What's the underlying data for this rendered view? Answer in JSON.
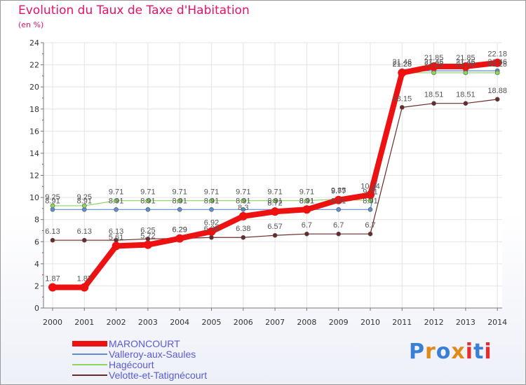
{
  "chart_data": {
    "type": "line",
    "title": "Evolution du Taux de Taxe d'Habitation",
    "ylabel": "(en %)",
    "xlabel": "",
    "ylim": [
      0,
      24
    ],
    "yticks": [
      0,
      2,
      4,
      6,
      8,
      10,
      12,
      14,
      16,
      18,
      20,
      22,
      24
    ],
    "x": [
      "2000",
      "2001",
      "2002",
      "2003",
      "2004",
      "2005",
      "2006",
      "2007",
      "2008",
      "2009",
      "2010",
      "2011",
      "2012",
      "2013",
      "2014"
    ],
    "series": [
      {
        "name": "MARONCOURT",
        "color": "#ee1111",
        "values": [
          1.87,
          1.87,
          5.61,
          5.72,
          6.29,
          6.92,
          8.3,
          8.72,
          8.91,
          9.77,
          10.24,
          21.28,
          21.85,
          21.85,
          22.18
        ],
        "labels": [
          "1.87",
          "1.87",
          "5.61",
          "5.72",
          "6.29",
          "6.92",
          "8.3",
          "8.72",
          "8.91",
          "9.77",
          "10.24",
          "21.28",
          "21.85",
          "21.85",
          "22.18"
        ]
      },
      {
        "name": "Valleroy-aux-Saules",
        "color": "#5b8fd0",
        "values": [
          8.91,
          8.91,
          8.91,
          8.91,
          8.91,
          8.91,
          8.91,
          8.91,
          8.91,
          8.91,
          8.91,
          21.46,
          21.46,
          21.46,
          21.46
        ],
        "labels": [
          "8.91",
          "8.91",
          "8.91",
          "8.91",
          "8.91",
          "8.91",
          "8.91",
          "8.91",
          "8.91",
          "8.91",
          "8.91",
          "21.46",
          "21.46",
          "21.46",
          "21.46"
        ]
      },
      {
        "name": "Hagécourt",
        "color": "#8cd65e",
        "values": [
          9.25,
          9.25,
          9.71,
          9.71,
          9.71,
          9.71,
          9.71,
          9.71,
          9.71,
          9.85,
          9.71,
          21.28,
          21.28,
          21.28,
          21.28
        ],
        "labels": [
          "9.25",
          "9.25",
          "9.71",
          "9.71",
          "9.71",
          "9.71",
          "9.71",
          "9.71",
          "9.71",
          "9.85",
          "9.71",
          "21.28",
          "21.28",
          "21.28",
          "21.28"
        ]
      },
      {
        "name": "Velotte-et-Tatignécourt",
        "color": "#6b2a2a",
        "values": [
          6.13,
          6.13,
          6.13,
          6.25,
          6.29,
          6.38,
          6.38,
          6.57,
          6.7,
          6.7,
          6.7,
          18.15,
          18.51,
          18.51,
          18.88
        ],
        "labels": [
          "6.13",
          "6.13",
          "6.13",
          "6.25",
          "6.29",
          "6.38",
          "6.38",
          "6.57",
          "6.7",
          "6.7",
          "6.7",
          "18.15",
          "18.51",
          "18.51",
          "18.88"
        ]
      }
    ]
  },
  "brand": {
    "logo_text": "Proxiti"
  }
}
